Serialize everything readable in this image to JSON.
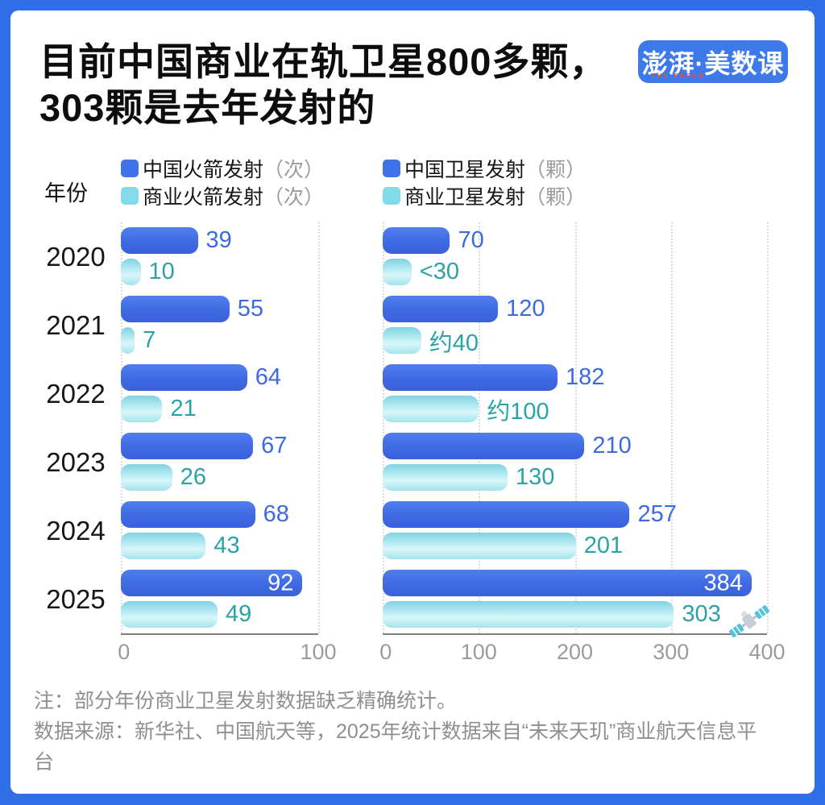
{
  "poster": {
    "title_line1": "目前中国商业在轨卫星800多颗，",
    "title_line2": "303颗是去年发射的",
    "frame_color": "#2f70e8"
  },
  "logo": {
    "text": "澎湃·美数课",
    "subtext": "THE PAPER",
    "bg_color": "#3d79e9",
    "subtext_color": "#ff4438"
  },
  "axis_label": "年份",
  "legends": {
    "left": [
      {
        "label": "中国火箭发射",
        "unit": "（次）",
        "swatch": "#4072e8",
        "kind": "main"
      },
      {
        "label": "商业火箭发射",
        "unit": "（次）",
        "swatch": "#82dbe8",
        "kind": "com"
      }
    ],
    "right": [
      {
        "label": "中国卫星发射",
        "unit": "（颗）",
        "swatch": "#4072e8",
        "kind": "main"
      },
      {
        "label": "商业卫星发射",
        "unit": "（颗）",
        "swatch": "#82dbe8",
        "kind": "com"
      }
    ]
  },
  "chart_data": [
    {
      "type": "bar",
      "orientation": "horizontal",
      "title": "中国火箭发射与商业火箭发射（次）",
      "categories": [
        "2020",
        "2021",
        "2022",
        "2023",
        "2024",
        "2025"
      ],
      "xlim": [
        0,
        100
      ],
      "ticks": [
        0,
        100
      ],
      "grid": "dotted-vertical",
      "legend_position": "top",
      "series": [
        {
          "name": "中国火箭发射（次）",
          "values": [
            39,
            55,
            64,
            67,
            68,
            92
          ],
          "labels": [
            "39",
            "55",
            "64",
            "67",
            "68",
            "92"
          ],
          "label_inside": [
            false,
            false,
            false,
            false,
            false,
            true
          ]
        },
        {
          "name": "商业火箭发射（次）",
          "values": [
            10,
            7,
            21,
            26,
            43,
            49
          ],
          "labels": [
            "10",
            "7",
            "21",
            "26",
            "43",
            "49"
          ],
          "label_inside": [
            false,
            false,
            false,
            false,
            false,
            false
          ]
        }
      ]
    },
    {
      "type": "bar",
      "orientation": "horizontal",
      "title": "中国卫星发射与商业卫星发射（颗）",
      "categories": [
        "2020",
        "2021",
        "2022",
        "2023",
        "2024",
        "2025"
      ],
      "xlim": [
        0,
        400
      ],
      "ticks": [
        0,
        100,
        200,
        300,
        400
      ],
      "grid": "dotted-vertical",
      "legend_position": "top",
      "series": [
        {
          "name": "中国卫星发射（颗）",
          "values": [
            70,
            120,
            182,
            210,
            257,
            384
          ],
          "labels": [
            "70",
            "120",
            "182",
            "210",
            "257",
            "384"
          ],
          "label_inside": [
            false,
            false,
            false,
            false,
            false,
            true
          ]
        },
        {
          "name": "商业卫星发射（颗）",
          "values": [
            30,
            40,
            100,
            130,
            201,
            303
          ],
          "labels": [
            "<30",
            "约40",
            "约100",
            "130",
            "201",
            "303"
          ],
          "label_inside": [
            false,
            false,
            false,
            false,
            false,
            false
          ],
          "icons": [
            null,
            null,
            null,
            null,
            null,
            "satellite-icon"
          ]
        }
      ]
    }
  ],
  "notes": [
    "注：部分年份商业卫星发射数据缺乏精确统计。",
    "数据来源：新华社、中国航天等，2025年统计数据来自“未来天玑”商业航天信息平台"
  ],
  "colors": {
    "bar_main": "#3f6ae2",
    "bar_commercial": "#9fe2ee",
    "value_label_main": "#3c6ae2",
    "value_label_commercial": "#2ba3a6",
    "axis_line": "#7e7e7e",
    "tick_text": "#9b9b9b",
    "gridline": "#dcdcdc",
    "note_text": "#8f8f8f"
  }
}
